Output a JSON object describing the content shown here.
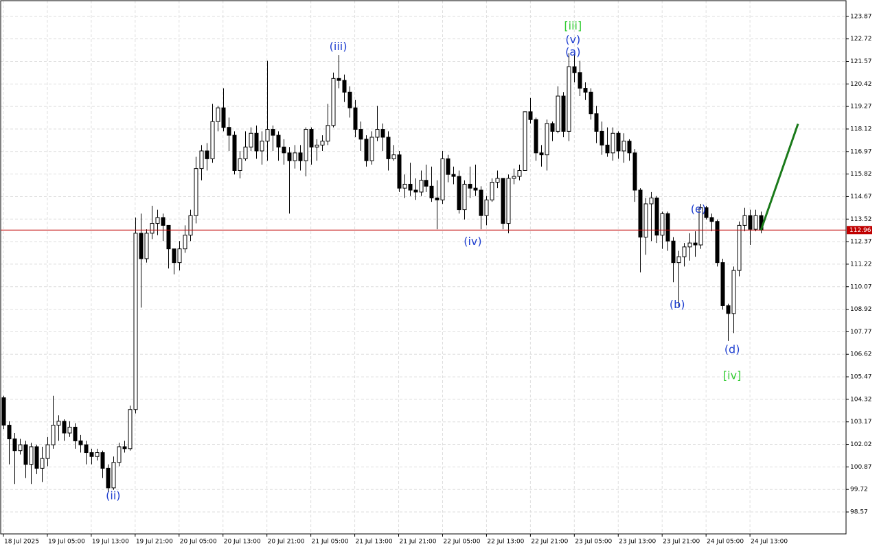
{
  "chart_data": {
    "type": "candlestick",
    "categories": [
      "18 Jul 2025",
      null,
      null,
      null,
      null,
      null,
      null,
      null,
      "19 Jul 05:00",
      null,
      null,
      null,
      null,
      null,
      null,
      null,
      "19 Jul 13:00",
      null,
      null,
      null,
      null,
      null,
      null,
      null,
      "19 Jul 21:00",
      null,
      null,
      null,
      null,
      null,
      null,
      null,
      "20 Jul 05:00",
      null,
      null,
      null,
      null,
      null,
      null,
      null,
      "20 Jul 13:00",
      null,
      null,
      null,
      null,
      null,
      null,
      null,
      "20 Jul 21:00",
      null,
      null,
      null,
      null,
      null,
      null,
      null,
      "21 Jul 05:00",
      null,
      null,
      null,
      null,
      null,
      null,
      null,
      "21 Jul 13:00",
      null,
      null,
      null,
      null,
      null,
      null,
      null,
      "21 Jul 21:00",
      null,
      null,
      null,
      null,
      null,
      null,
      null,
      "22 Jul 05:00",
      null,
      null,
      null,
      null,
      null,
      null,
      null,
      "22 Jul 13:00",
      null,
      null,
      null,
      null,
      null,
      null,
      null,
      "22 Jul 21:00",
      null,
      null,
      null,
      null,
      null,
      null,
      null,
      "23 Jul 05:00",
      null,
      null,
      null,
      null,
      null,
      null,
      null,
      "23 Jul 13:00",
      null,
      null,
      null,
      null,
      null,
      null,
      null,
      "23 Jul 21:00",
      null,
      null,
      null,
      null,
      null,
      null,
      null,
      "24 Jul 05:00",
      null,
      null,
      null,
      null,
      null,
      null,
      null,
      "24 Jul 13:00",
      null,
      null
    ],
    "open": [
      104.4,
      103,
      102.3,
      101.7,
      102,
      101,
      101.9,
      100.8,
      101.3,
      102,
      103,
      103.2,
      102.6,
      102.9,
      102.2,
      102,
      101.6,
      101.4,
      101.6,
      100.8,
      99.8,
      101.1,
      101.9,
      101.8,
      103.8,
      112.8,
      111.5,
      112.8,
      113.3,
      113.6,
      113.2,
      112,
      111.3,
      112,
      112.7,
      113.7,
      116.1,
      117,
      116.6,
      118.5,
      119.2,
      118.2,
      117.8,
      116,
      116.6,
      117.2,
      117.9,
      117,
      117.5,
      118.1,
      117.8,
      117.2,
      116.9,
      116.5,
      116.9,
      116.5,
      118.1,
      117.2,
      117.3,
      117.5,
      118.3,
      120.7,
      120.6,
      120,
      119.2,
      118.1,
      117.6,
      116.5,
      117.7,
      118.1,
      117.7,
      116.6,
      116.8,
      115.1,
      115.3,
      115,
      114.9,
      115.5,
      115.2,
      114.6,
      114.5,
      116.6,
      115.8,
      115.7,
      114,
      115.3,
      115.1,
      115,
      113.7,
      114.5,
      115.4,
      115.6,
      113.3,
      115.6,
      115.7,
      116,
      119,
      118.6,
      116.9,
      116.8,
      118.4,
      118,
      119.8,
      118,
      121.3,
      121,
      120.2,
      120,
      118.9,
      118,
      117.3,
      116.9,
      117.9,
      117,
      117.5,
      116.9,
      115,
      112.6,
      114.3,
      114.6,
      112.7,
      113.8,
      112.4,
      111.3,
      111.6,
      112.1,
      112.3,
      112.2,
      114.1,
      113.6,
      113.4,
      111.3,
      109.1,
      108.7,
      110.9,
      113.2,
      113.7,
      113.0,
      113.7
    ],
    "high": [
      104.5,
      103.2,
      102.6,
      102.3,
      102.2,
      102.1,
      102,
      101.9,
      102.4,
      104.5,
      103.5,
      103.3,
      103.2,
      103.1,
      102.5,
      102.2,
      101.8,
      101.8,
      101.7,
      101,
      101.4,
      102.1,
      102.2,
      104,
      113.6,
      113.8,
      113,
      114.2,
      114,
      113.8,
      113.2,
      111.9,
      112.4,
      113.2,
      114,
      116.7,
      117.3,
      117.4,
      119.4,
      119.3,
      120.2,
      118.7,
      118,
      117,
      118,
      118.2,
      118.3,
      118,
      121.6,
      118.3,
      118,
      117.6,
      117.2,
      117.3,
      117.3,
      118.2,
      118.2,
      117.6,
      117.8,
      119.4,
      121,
      121.9,
      120.9,
      120.3,
      119.6,
      118.5,
      117.8,
      118,
      119.3,
      118.4,
      118,
      117.3,
      117,
      115.8,
      116.4,
      115.6,
      116,
      116.3,
      116.2,
      115.5,
      117,
      116.8,
      116.2,
      116,
      115.5,
      116.2,
      116.3,
      115.2,
      114.7,
      115.6,
      116,
      115.6,
      115.8,
      116.1,
      116.3,
      119,
      119.7,
      118.7,
      117.3,
      118.6,
      118.5,
      120.3,
      120,
      122,
      122,
      121.6,
      120.5,
      120.2,
      119.3,
      118.5,
      118.2,
      118.2,
      118,
      117.9,
      117.6,
      117.1,
      115.1,
      114.6,
      114.9,
      114.7,
      113.9,
      113.9,
      112.6,
      111.9,
      112.3,
      112.8,
      112.9,
      114.3,
      114.2,
      113.8,
      113.5,
      111.5,
      109.2,
      111.1,
      113.4,
      114.1,
      114,
      114,
      113.9
    ],
    "low": [
      102.8,
      101,
      100,
      101.5,
      100.3,
      100,
      100.5,
      100.1,
      100.9,
      101.8,
      102.2,
      102.2,
      102.4,
      101.8,
      101.6,
      101,
      101,
      101.2,
      100.3,
      99.6,
      99.7,
      100.9,
      101.6,
      101.7,
      103.6,
      109,
      111.3,
      112.5,
      112.7,
      112.4,
      111,
      110.7,
      110.9,
      111.8,
      112.4,
      113.3,
      115.5,
      116,
      116.4,
      118,
      118,
      117,
      115.8,
      115.6,
      116.5,
      117,
      116.6,
      116.3,
      116.5,
      117,
      116.5,
      116.3,
      113.8,
      116.1,
      116,
      115.7,
      116.3,
      116.5,
      117,
      117.3,
      118.2,
      120.2,
      119.5,
      118.7,
      117.7,
      117,
      116.2,
      116.3,
      117.5,
      117,
      116,
      116.5,
      114.9,
      114.6,
      114.7,
      114.5,
      114.7,
      114.9,
      114.4,
      113,
      114.3,
      115.4,
      115.3,
      113.8,
      113.5,
      114.6,
      114.7,
      113,
      113.2,
      114.4,
      115.1,
      113,
      112.8,
      115.3,
      115.5,
      116,
      118.4,
      116.5,
      116.2,
      116,
      117.5,
      117.9,
      117.7,
      117.5,
      120.5,
      119.8,
      119.6,
      118.6,
      117.4,
      116.8,
      116.7,
      116.5,
      116.6,
      116.4,
      116.5,
      114.4,
      110.8,
      111.7,
      112.4,
      112.3,
      112,
      111.9,
      110.3,
      109,
      111.1,
      111.4,
      111.6,
      112,
      113.5,
      112.9,
      111.1,
      108.9,
      107.3,
      107.7,
      110.6,
      112.9,
      112.2,
      112.9,
      112.8
    ],
    "close": [
      103,
      102.3,
      101.7,
      102,
      101,
      101.9,
      100.8,
      101.3,
      102,
      103,
      103.2,
      102.6,
      102.9,
      102.2,
      102,
      101.6,
      101.4,
      101.6,
      100.8,
      99.8,
      101.1,
      101.9,
      101.8,
      103.8,
      112.8,
      111.5,
      112.8,
      113.3,
      113.6,
      113.2,
      112,
      111.3,
      112,
      112.7,
      113.7,
      116.1,
      117,
      116.6,
      118.5,
      119.2,
      118.2,
      117.8,
      116,
      116.6,
      117.2,
      117.9,
      117,
      117.5,
      118.1,
      117.8,
      117.2,
      116.9,
      116.5,
      116.9,
      116.5,
      118.1,
      117.2,
      117.3,
      117.5,
      118.3,
      120.7,
      120.6,
      120,
      119.2,
      118.1,
      117.6,
      116.5,
      117.7,
      118.1,
      117.7,
      116.6,
      116.8,
      115.1,
      115.3,
      115,
      114.9,
      115.5,
      115.2,
      114.6,
      114.5,
      116.6,
      115.8,
      115.7,
      114,
      115.3,
      115.1,
      115,
      113.7,
      114.5,
      115.4,
      115.6,
      113.3,
      115.6,
      115.7,
      116,
      119,
      118.6,
      116.9,
      116.8,
      118.4,
      118,
      119.8,
      118,
      121.3,
      121,
      120.2,
      120,
      118.9,
      118,
      117.3,
      116.9,
      117.9,
      117,
      117.5,
      116.9,
      115,
      112.6,
      114.3,
      114.6,
      112.7,
      113.8,
      112.4,
      111.3,
      111.6,
      112.1,
      112.3,
      112.2,
      114.1,
      113.6,
      113.4,
      111.3,
      109.1,
      108.7,
      110.9,
      113.2,
      113.7,
      113.0,
      113.7,
      112.96
    ],
    "up_color": "#ffffff",
    "down_color": "#000000",
    "xlim": [
      -0.5,
      153.5
    ],
    "ylim": [
      97.45,
      124.67
    ],
    "yticks": [
      123.87,
      122.72,
      121.57,
      120.42,
      119.27,
      118.12,
      116.97,
      115.82,
      114.67,
      113.52,
      112.37,
      111.22,
      110.07,
      108.92,
      107.77,
      106.62,
      105.47,
      104.32,
      103.17,
      102.02,
      100.87,
      99.72,
      98.57
    ],
    "grid": true,
    "last_price": 112.96,
    "last_price_color": "#c00000",
    "annotations": [
      {
        "text": "(ii)",
        "x": 20,
        "y": 99.38,
        "color": "#1f3fd0"
      },
      {
        "text": "(iii)",
        "x": 61,
        "y": 122.3,
        "color": "#1f3fd0"
      },
      {
        "text": "[iii]",
        "x": 103.75,
        "y": 123.35,
        "color": "#33cc33"
      },
      {
        "text": "(v)",
        "x": 103.75,
        "y": 122.65,
        "color": "#1f3fd0"
      },
      {
        "text": "(a)",
        "x": 103.75,
        "y": 122.02,
        "color": "#1f3fd0"
      },
      {
        "text": "(iv)",
        "x": 85.5,
        "y": 112.36,
        "color": "#1f3fd0"
      },
      {
        "text": "(b)",
        "x": 122.75,
        "y": 109.14,
        "color": "#1f3fd0"
      },
      {
        "text": "(e)",
        "x": 126.6,
        "y": 114.0,
        "color": "#1f3fd0"
      },
      {
        "text": "(d)",
        "x": 132.75,
        "y": 106.83,
        "color": "#1f3fd0"
      },
      {
        "text": "[iv]",
        "x": 132.75,
        "y": 105.5,
        "color": "#33cc33"
      }
    ],
    "forecast": {
      "x": [
        138,
        144.75
      ],
      "y": [
        112.96,
        118.38
      ],
      "color": "#1a7a1a"
    }
  }
}
